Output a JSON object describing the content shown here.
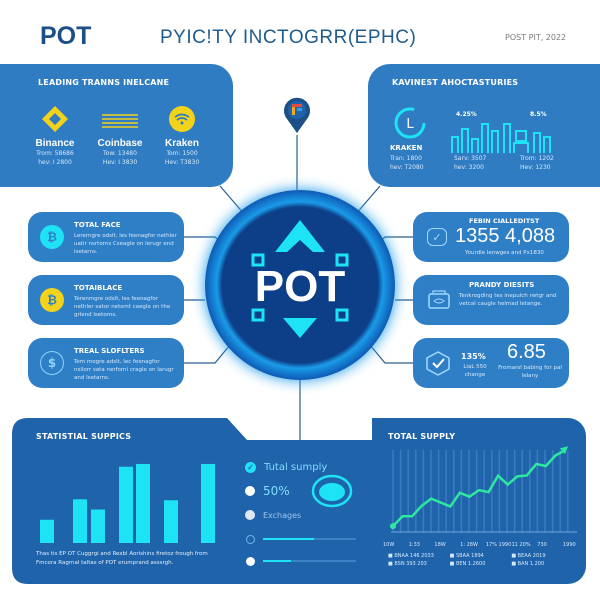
{
  "header": {
    "logo": "POT",
    "title": "PYIC!TY INCTOGRR(EPHC)",
    "date": "POST PIT, 2022"
  },
  "top_left": {
    "title": "LEADING TRANNS INELCANE",
    "exchanges": [
      {
        "name": "Binance",
        "line1": "Trom: 58686",
        "line2": "hev: I 2800",
        "icon": "binance-diamond-icon"
      },
      {
        "name": "Coinbase",
        "line1": "Tow: 13480",
        "line2": "Hev: I 3830",
        "icon": "coinbase-lines-icon"
      },
      {
        "name": "Kraken",
        "line1": "Tom: 1500",
        "line2": "Hev: T3830",
        "icon": "kraken-wifi-icon"
      }
    ]
  },
  "top_right": {
    "title": "KAVINEST AHOCTASTURIES",
    "kraken": {
      "name": "KRAKEN",
      "line1": "Tran: 1800",
      "line2": "hev: T2080"
    },
    "pct1": "4.25%",
    "pct2": "8.5%",
    "col2": {
      "line1": "Sarv: 3507",
      "line2": "hev: 3200"
    },
    "col3": {
      "line1": "Trom: 1202",
      "line2": "Hev: 1230"
    }
  },
  "center": {
    "label": "POT"
  },
  "left_cards": [
    {
      "title": "TOTAL FACE",
      "body": "Lererngre odslt, les feenagfor nethler uatir nsrtorns Cseagle on lerugr end lsetarns.",
      "icon": "bitcoin-icon"
    },
    {
      "title": "TOTAIBLACE",
      "body": "Terenmgre odslt, les feenagfor nethler sator netsrnt caegle on the grlend lsetorns.",
      "icon": "bitcoin-coin-icon"
    },
    {
      "title": "TREAL SLOFLTERS",
      "body": "Tem mogre adslt, lec feenagfor nsilorr sata nerforni cragle on larugr and lsetarns.",
      "icon": "dollar-icon"
    }
  ],
  "right_cards": [
    {
      "title": "FEBIN CIALLEDITST",
      "value": "1355 4,088",
      "sub": "Yourdle lenwges and Px1830",
      "icon": "check-chat-icon"
    },
    {
      "title": "PRANDY DIESITS",
      "body": "Tenkrogding tes inepulch rwtgr and vetcal caugle helmad letange.",
      "icon": "wallet-icon"
    },
    {
      "title": "",
      "pct": "135%",
      "pct_sub": "LiaL 550 change",
      "value": "6.85",
      "value_sub": "Fromarsl babing for pal lelany",
      "icon": "cube-check-icon"
    }
  ],
  "bottom_left": {
    "title": "STATISTIAL SUPPICS",
    "caption": "Thas tis EP OT Cuggrgi and Rexbl Aorishins firetoz frough from Fmcora Ragrnal taltas of POT erumprand asssrgh.",
    "legend": [
      {
        "label": "Tutal sumply",
        "icon": "check-circle-icon"
      },
      {
        "label": "50%",
        "icon": "dot-circle-icon"
      },
      {
        "label": "Exchages",
        "icon": "clock-circle-icon"
      }
    ],
    "sliders": [
      0.55,
      0.3
    ]
  },
  "chart_data": [
    {
      "type": "bar",
      "title": "",
      "categories": [
        "",
        "",
        "",
        "",
        "",
        "",
        ""
      ],
      "values": [
        25,
        47,
        36,
        82,
        85,
        46,
        85
      ],
      "color": "#1de3f5",
      "grid": false
    },
    {
      "type": "line",
      "title": "TOTAL SUPPLY",
      "x_ticks": [
        "10W",
        "1:33",
        "18W",
        "1: 28W",
        "17% 1990",
        "11 20%",
        "730",
        "1990"
      ],
      "values": [
        18,
        48,
        48,
        80,
        102,
        90,
        78,
        120,
        108,
        128,
        122,
        172,
        145,
        170,
        173,
        208,
        202,
        234,
        250
      ],
      "color": "#2ee8a0",
      "grid": true,
      "legend": [
        "BNAA 146 2033",
        "BSN 393 203",
        "SBAA 1894",
        "BEN 1.2600",
        "BEAA 2019",
        "BAN 1.200"
      ]
    }
  ],
  "colors": {
    "brand": "#1b4f86",
    "panel": "#2f7cc2",
    "panel_dark": "#1f63ab",
    "accent": "#1de3f5",
    "line": "#2ee8a0",
    "yellow": "#f2d21b"
  }
}
